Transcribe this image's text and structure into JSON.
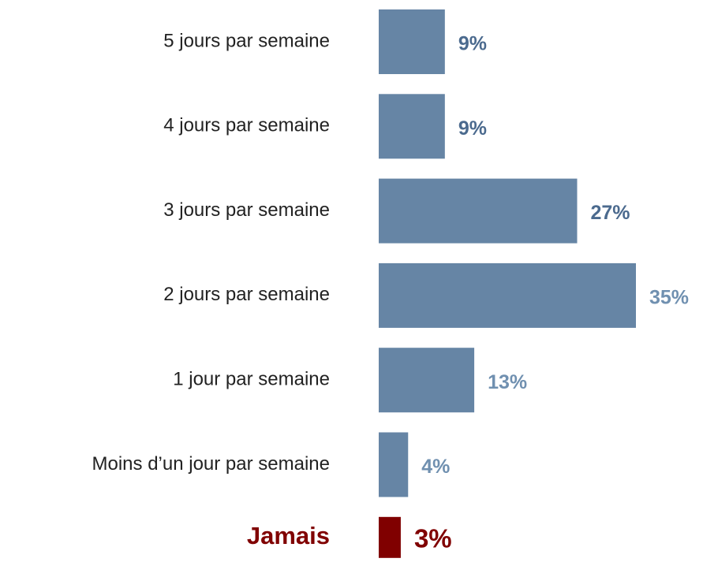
{
  "chart_data": {
    "type": "bar",
    "orientation": "horizontal",
    "categories": [
      "5 jours par semaine",
      "4 jours par semaine",
      "3 jours par semaine",
      "2 jours par semaine",
      "1 jour par semaine",
      "Moins d’un jour par semaine",
      "Jamais"
    ],
    "values": [
      9,
      9,
      27,
      35,
      13,
      4,
      3
    ],
    "value_labels": [
      "9%",
      "9%",
      "27%",
      "35%",
      "13%",
      "4%",
      "3%"
    ],
    "colors": [
      "#6685a5",
      "#6685a5",
      "#6685a5",
      "#6685a5",
      "#6685a5",
      "#6685a5",
      "#800000"
    ],
    "label_colors": [
      "#4b6a8e",
      "#4b6a8e",
      "#4b6a8e",
      "#7090b0",
      "#7090b0",
      "#7090b0",
      "#800000"
    ],
    "xlim": [
      0,
      35
    ]
  }
}
